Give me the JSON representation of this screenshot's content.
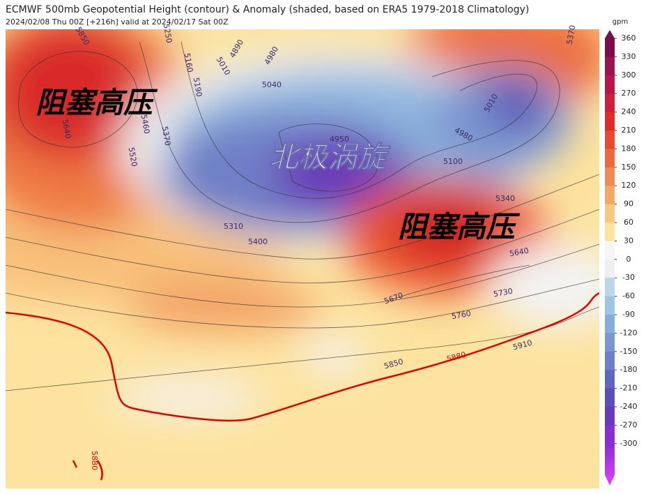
{
  "header": {
    "title": "ECMWF 500mb Geopotential Height (contour) & Anomaly (shaded, based on ERA5 1979-2018 Climatology)",
    "subtitle": "2024/02/08 Thu 00Z [+216h] valid at 2024/02/17 Sat 00Z"
  },
  "annotations": [
    "阻塞高压",
    "北极涡旋",
    "阻塞高压"
  ],
  "contour_labels": [
    "5850",
    "5640",
    "5460",
    "5520",
    "5370",
    "5250",
    "5160",
    "5190",
    "5010",
    "4890",
    "4980",
    "5040",
    "4950",
    "5310",
    "5400",
    "5010",
    "4980",
    "5100",
    "5340",
    "5640",
    "5730",
    "5760",
    "5670",
    "5850",
    "5880",
    "5910",
    "5880",
    "5370"
  ],
  "colorbar": {
    "unit": "gpm",
    "ticks": [
      360,
      330,
      300,
      270,
      240,
      210,
      180,
      150,
      120,
      90,
      60,
      30,
      0,
      -30,
      -60,
      -90,
      -120,
      -150,
      -180,
      -210,
      -240,
      -270,
      -300
    ],
    "colors": [
      "#7a0d4a",
      "#9b1350",
      "#b8164a",
      "#cf1f3e",
      "#e02b2b",
      "#e84a30",
      "#ee6a3e",
      "#f08a55",
      "#f4a868",
      "#f8c880",
      "#fde3a0",
      "#f6f6f6",
      "#efefef",
      "#b8d8ea",
      "#9dc6e3",
      "#86acd9",
      "#7c96d0",
      "#6f7fc6",
      "#6066bb",
      "#5b4fb5",
      "#6a3ab8",
      "#8a2ed0"
    ]
  }
}
